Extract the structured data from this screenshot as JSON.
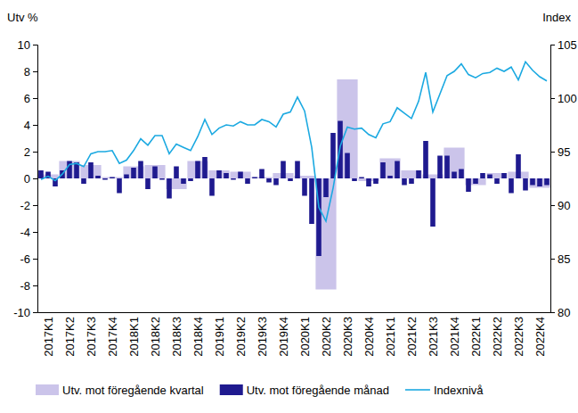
{
  "chart_data": {
    "type": "bar",
    "ylabel": "Utv %",
    "y2label": "Index",
    "categories": [
      null,
      "2017K1",
      null,
      null,
      "2017K2",
      null,
      null,
      "2017K3",
      null,
      null,
      "2017K4",
      null,
      null,
      "2018K1",
      null,
      null,
      "2018K2",
      null,
      null,
      "2018K3",
      null,
      null,
      "2018K4",
      null,
      null,
      "2019K1",
      null,
      null,
      "2019K2",
      null,
      null,
      "2019K3",
      null,
      null,
      "2019K4",
      null,
      null,
      "2020K1",
      null,
      null,
      "2020K2",
      null,
      null,
      "2020K3",
      null,
      null,
      "2020K4",
      null,
      null,
      "2021K1",
      null,
      null,
      "2021K2",
      null,
      null,
      "2021K3",
      null,
      null,
      "2021K4",
      null,
      null,
      "2022K1",
      null,
      null,
      "2022K2",
      null,
      null,
      "2022K3",
      null,
      null,
      "2022K4",
      null
    ],
    "ylim": [
      -10,
      10
    ],
    "yticks": [
      -10,
      -8,
      -6,
      -4,
      -2,
      0,
      2,
      4,
      6,
      8,
      10
    ],
    "y2lim": [
      80,
      105
    ],
    "y2ticks": [
      80,
      85,
      90,
      95,
      100,
      105
    ],
    "legend": "bottom",
    "grid": false,
    "series": [
      {
        "name": "Utv. mot föregående kvartal",
        "type": "bar",
        "color": "#cbc4ea",
        "values": [
          null,
          0.3,
          null,
          null,
          1.3,
          null,
          null,
          1.0,
          null,
          null,
          0.1,
          null,
          null,
          0.9,
          null,
          null,
          1.0,
          null,
          null,
          -0.8,
          null,
          null,
          1.3,
          null,
          null,
          0.6,
          null,
          null,
          0.5,
          null,
          null,
          0.1,
          null,
          null,
          0.4,
          null,
          null,
          0.2,
          null,
          null,
          -8.3,
          null,
          null,
          7.4,
          null,
          null,
          -0.2,
          null,
          null,
          1.5,
          null,
          null,
          0.6,
          null,
          null,
          0.3,
          null,
          null,
          2.3,
          null,
          null,
          -0.5,
          null,
          null,
          0.4,
          null,
          null,
          0.5,
          null,
          null,
          -0.7,
          null
        ]
      },
      {
        "name": "Utv. mot föregående månad",
        "type": "bar",
        "color": "#1f1a8f",
        "values": [
          0.6,
          0.5,
          -0.6,
          0.6,
          1.3,
          1.2,
          -0.4,
          1.2,
          0.2,
          -0.1,
          0.1,
          -1.1,
          0.3,
          0.8,
          1.3,
          -0.8,
          0.9,
          -0.1,
          -1.5,
          0.9,
          -0.4,
          -0.2,
          1.3,
          1.6,
          -1.3,
          0.6,
          0.4,
          -0.1,
          0.5,
          -0.4,
          0.1,
          0.7,
          -0.3,
          -0.5,
          1.3,
          -0.2,
          1.3,
          -1.3,
          -3.4,
          -5.8,
          -1.4,
          3.4,
          4.3,
          1.9,
          -0.2,
          0.1,
          -0.6,
          -0.4,
          1.2,
          0.2,
          1.3,
          -0.5,
          -0.4,
          0.6,
          2.8,
          -3.6,
          1.7,
          1.7,
          0.5,
          0.7,
          -1.0,
          -0.4,
          0.4,
          0.3,
          -0.4,
          0.4,
          -1.1,
          1.8,
          -0.9,
          -0.5,
          -0.6,
          -0.5
        ]
      },
      {
        "name": "Indexnivå",
        "type": "line",
        "axis": "y2",
        "color": "#1ba9e1",
        "values": [
          92.4,
          92.7,
          92.3,
          92.9,
          93.8,
          93.9,
          93.6,
          94.8,
          95.0,
          95.0,
          95.1,
          93.9,
          94.2,
          95.1,
          96.2,
          95.6,
          96.5,
          96.5,
          94.8,
          95.7,
          95.4,
          95.1,
          96.4,
          98.0,
          96.6,
          97.2,
          97.5,
          97.4,
          97.8,
          97.5,
          97.5,
          98.0,
          97.8,
          97.3,
          98.5,
          98.7,
          100.1,
          98.8,
          95.4,
          89.8,
          88.5,
          91.6,
          95.5,
          97.3,
          97.1,
          97.2,
          96.6,
          96.3,
          97.6,
          97.8,
          99.1,
          98.6,
          98.1,
          99.7,
          102.4,
          98.7,
          100.4,
          102.1,
          102.5,
          103.2,
          102.2,
          101.9,
          102.3,
          102.4,
          102.8,
          102.5,
          102.9,
          101.7,
          103.4,
          102.6,
          102.0,
          101.6
        ]
      }
    ]
  }
}
